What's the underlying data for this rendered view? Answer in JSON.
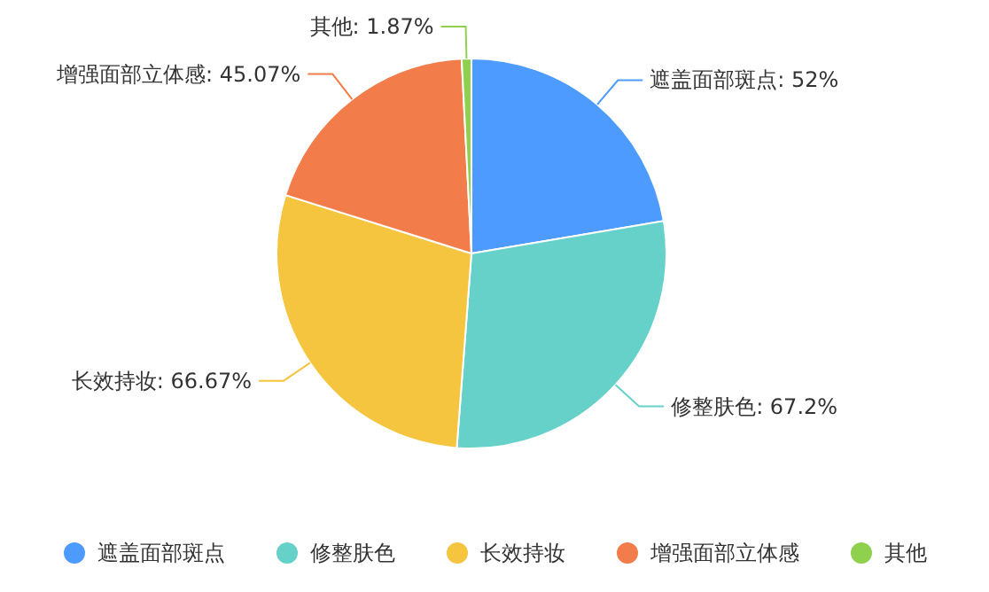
{
  "chart_data": {
    "type": "pie",
    "categories": [
      "遮盖面部斑点",
      "修整肤色",
      "长效持妆",
      "增强面部立体感",
      "其他"
    ],
    "values": [
      52,
      67.2,
      66.67,
      45.07,
      1.87
    ],
    "value_labels": [
      "遮盖面部斑点: 52%",
      "修整肤色: 67.2%",
      "长效持妆: 66.67%",
      "增强面部立体感: 45.07%",
      "其他: 1.87%"
    ],
    "colors": [
      "#4d9bff",
      "#66d1c9",
      "#f5c540",
      "#f27d4a",
      "#8fd14f"
    ],
    "legend": "bottom"
  }
}
